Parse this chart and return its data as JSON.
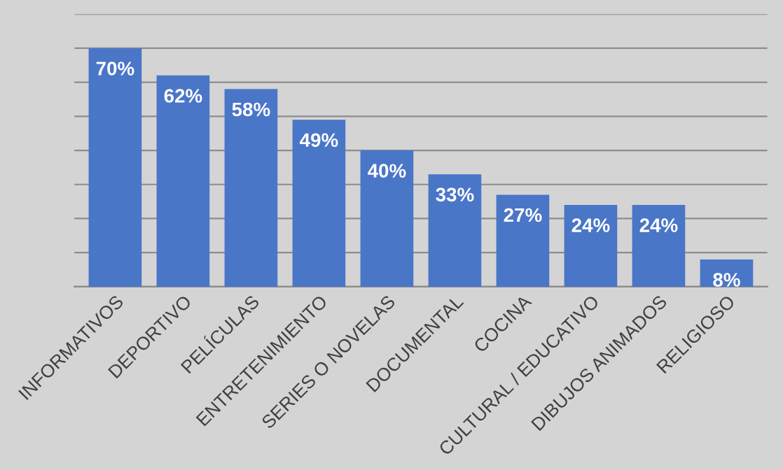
{
  "chart_data": {
    "type": "bar",
    "categories": [
      "INFORMATIVOS",
      "DEPORTIVO",
      "PELÍCULAS",
      "ENTRETENIMIENTO",
      "SERIES O NOVELAS",
      "DOCUMENTAL",
      "COCINA",
      "CULTURAL / EDUCATIVO",
      "DIBUJOS ANIMADOS",
      "RELIGIOSO"
    ],
    "values": [
      70,
      62,
      58,
      49,
      40,
      33,
      27,
      24,
      24,
      8
    ],
    "value_labels": [
      "70%",
      "62%",
      "58%",
      "49%",
      "40%",
      "33%",
      "27%",
      "24%",
      "24%",
      "8%"
    ],
    "color": "#4a76c8",
    "ylim": [
      0,
      80
    ],
    "yticks": [
      {
        "value": 0,
        "label": null
      },
      {
        "value": 10,
        "label": null
      },
      {
        "value": 20,
        "label": null
      },
      {
        "value": 30,
        "label": null
      },
      {
        "value": 40,
        "label": null
      },
      {
        "value": 50,
        "label": null
      },
      {
        "value": 60,
        "label": null
      },
      {
        "value": 70,
        "label": null
      },
      {
        "value": 80,
        "label": null
      }
    ],
    "grid": "y",
    "tick_labels": "x"
  }
}
